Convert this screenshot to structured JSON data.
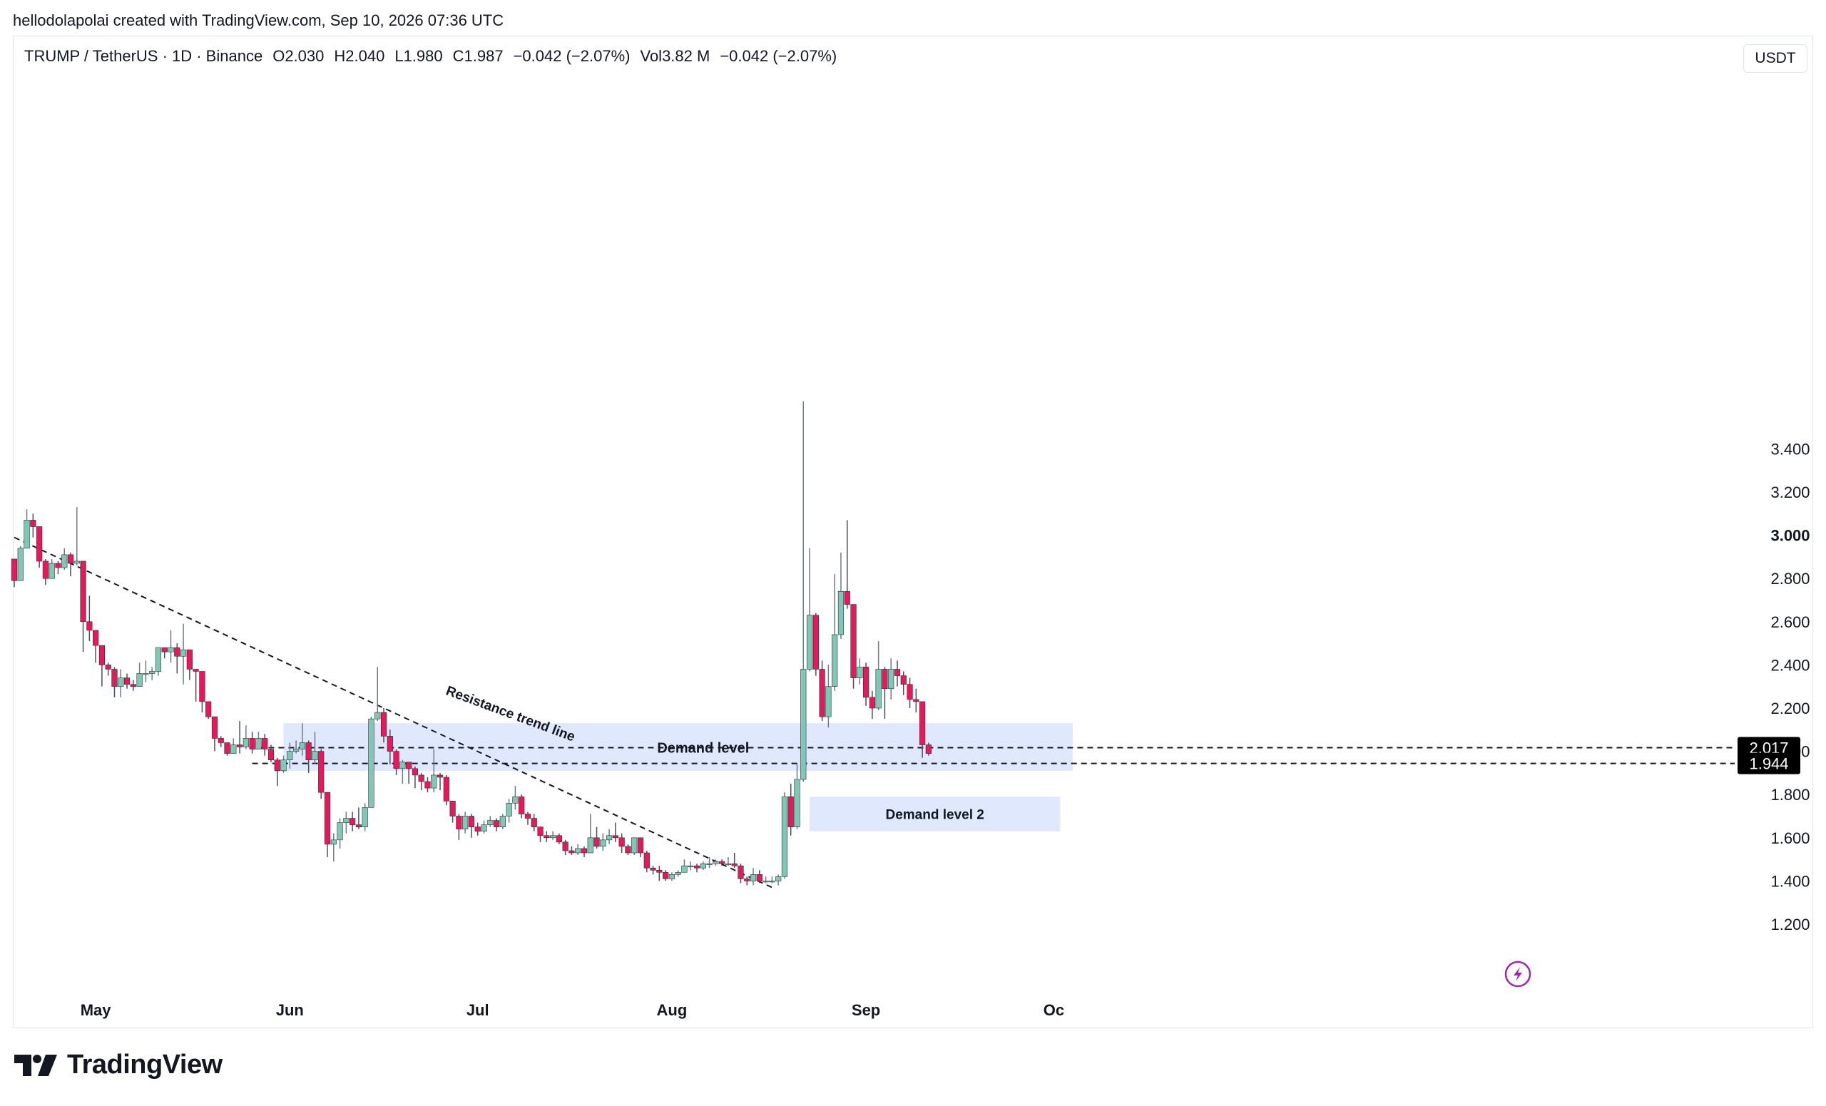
{
  "attribution": "hellodolapolai created with TradingView.com, Sep 10, 2026 07:36 UTC",
  "legend": {
    "symbol": "TRUMP / TetherUS · 1D · Binance",
    "open": "O2.030",
    "high": "H2.040",
    "low": "L1.980",
    "close": "C1.987",
    "change": "−0.042 (−2.07%)",
    "volume": "Vol3.82 M",
    "volume_change": "−0.042 (−2.07%)"
  },
  "currency": "USDT",
  "brand": "TradingView",
  "colors": {
    "up": "#80c8b5",
    "down": "#e8195a",
    "zone": "#e0e8fd",
    "text": "#131722"
  },
  "chart_data": {
    "type": "candlestick",
    "y_ticks": [
      "1.200",
      "1.400",
      "1.600",
      "1.800",
      "2.000",
      "2.200",
      "2.400",
      "2.600",
      "2.800",
      "3.000",
      "3.200",
      "3.400"
    ],
    "y_tick_bold": "3.000",
    "ylim": [
      1.0,
      3.65
    ],
    "x_labels": [
      {
        "label": "May",
        "index": 13
      },
      {
        "label": "Jun",
        "index": 44
      },
      {
        "label": "Jul",
        "index": 74
      },
      {
        "label": "Aug",
        "index": 105
      },
      {
        "label": "Sep",
        "index": 136
      },
      {
        "label": "Oc",
        "index": 166
      }
    ],
    "annotations": {
      "resistance_label": "Resistance trend line",
      "demand_label": "Demand level",
      "demand2_label": "Demand level 2"
    },
    "resistance_line": [
      [
        0,
        2.99
      ],
      [
        121,
        1.37
      ]
    ],
    "demand_zone": {
      "start": 43,
      "end": 169,
      "top": 2.13,
      "bottom": 1.91
    },
    "demand_zone_2": {
      "start": 127,
      "end": 167,
      "top": 1.79,
      "bottom": 1.63
    },
    "price_lines": [
      {
        "value": 2.017,
        "label": "2.017",
        "start": 39
      },
      {
        "value": 1.944,
        "label": "1.944",
        "start": 38
      }
    ],
    "candles": [
      [
        2.89,
        2.79,
        2.89,
        2.76
      ],
      [
        2.79,
        2.94,
        2.95,
        2.79
      ],
      [
        2.94,
        3.07,
        3.12,
        2.94
      ],
      [
        3.07,
        3.04,
        3.1,
        2.99
      ],
      [
        3.04,
        2.88,
        3.04,
        2.85
      ],
      [
        2.88,
        2.8,
        2.89,
        2.77
      ],
      [
        2.8,
        2.87,
        2.89,
        2.8
      ],
      [
        2.87,
        2.85,
        2.88,
        2.82
      ],
      [
        2.85,
        2.91,
        2.94,
        2.84
      ],
      [
        2.91,
        2.87,
        2.92,
        2.81
      ],
      [
        2.87,
        2.88,
        3.13,
        2.86
      ],
      [
        2.88,
        2.6,
        2.88,
        2.46
      ],
      [
        2.6,
        2.56,
        2.72,
        2.51
      ],
      [
        2.56,
        2.49,
        2.56,
        2.41
      ],
      [
        2.49,
        2.4,
        2.49,
        2.3
      ],
      [
        2.4,
        2.38,
        2.41,
        2.35
      ],
      [
        2.38,
        2.3,
        2.39,
        2.25
      ],
      [
        2.3,
        2.34,
        2.38,
        2.25
      ],
      [
        2.34,
        2.31,
        2.36,
        2.29
      ],
      [
        2.31,
        2.3,
        2.33,
        2.28
      ],
      [
        2.3,
        2.36,
        2.41,
        2.3
      ],
      [
        2.36,
        2.36,
        2.42,
        2.32
      ],
      [
        2.36,
        2.37,
        2.39,
        2.33
      ],
      [
        2.37,
        2.48,
        2.48,
        2.35
      ],
      [
        2.48,
        2.46,
        2.48,
        2.43
      ],
      [
        2.46,
        2.48,
        2.56,
        2.41
      ],
      [
        2.48,
        2.44,
        2.5,
        2.36
      ],
      [
        2.44,
        2.47,
        2.59,
        2.31
      ],
      [
        2.47,
        2.38,
        2.47,
        2.33
      ],
      [
        2.38,
        2.37,
        2.38,
        2.23
      ],
      [
        2.37,
        2.23,
        2.37,
        2.18
      ],
      [
        2.23,
        2.16,
        2.23,
        2.15
      ],
      [
        2.16,
        2.06,
        2.16,
        2.0
      ],
      [
        2.06,
        2.04,
        2.07,
        2.02
      ],
      [
        2.04,
        1.99,
        2.04,
        1.98
      ],
      [
        1.99,
        2.03,
        2.06,
        1.99
      ],
      [
        2.03,
        2.02,
        2.14,
        1.99
      ],
      [
        2.02,
        2.06,
        2.12,
        2.01
      ],
      [
        2.06,
        2.01,
        2.09,
        1.99
      ],
      [
        2.01,
        2.06,
        2.09,
        2.01
      ],
      [
        2.06,
        2.01,
        2.08,
        1.98
      ],
      [
        2.01,
        1.96,
        2.03,
        1.95
      ],
      [
        1.96,
        1.91,
        1.97,
        1.84
      ],
      [
        1.91,
        1.96,
        1.98,
        1.9
      ],
      [
        1.96,
        2.0,
        2.04,
        1.92
      ],
      [
        2.0,
        2.01,
        2.05,
        1.99
      ],
      [
        2.01,
        2.04,
        2.13,
        1.98
      ],
      [
        2.04,
        1.96,
        2.05,
        1.9
      ],
      [
        1.96,
        2.0,
        2.09,
        1.94
      ],
      [
        2.0,
        1.81,
        2.01,
        1.78
      ],
      [
        1.81,
        1.57,
        1.81,
        1.51
      ],
      [
        1.57,
        1.59,
        1.62,
        1.49
      ],
      [
        1.59,
        1.67,
        1.69,
        1.55
      ],
      [
        1.67,
        1.69,
        1.72,
        1.62
      ],
      [
        1.69,
        1.66,
        1.72,
        1.63
      ],
      [
        1.66,
        1.65,
        1.74,
        1.64
      ],
      [
        1.65,
        1.74,
        1.76,
        1.63
      ],
      [
        1.74,
        2.15,
        2.16,
        1.74
      ],
      [
        2.15,
        2.18,
        2.39,
        2.14
      ],
      [
        2.18,
        2.07,
        2.2,
        2.04
      ],
      [
        2.07,
        2.0,
        2.1,
        1.94
      ],
      [
        2.0,
        1.92,
        2.01,
        1.89
      ],
      [
        1.92,
        1.95,
        1.96,
        1.85
      ],
      [
        1.95,
        1.92,
        1.95,
        1.85
      ],
      [
        1.92,
        1.89,
        1.93,
        1.83
      ],
      [
        1.89,
        1.86,
        1.9,
        1.82
      ],
      [
        1.86,
        1.83,
        1.88,
        1.81
      ],
      [
        1.83,
        1.89,
        2.01,
        1.81
      ],
      [
        1.89,
        1.88,
        1.9,
        1.82
      ],
      [
        1.88,
        1.77,
        1.89,
        1.75
      ],
      [
        1.77,
        1.7,
        1.77,
        1.67
      ],
      [
        1.7,
        1.64,
        1.71,
        1.59
      ],
      [
        1.64,
        1.7,
        1.72,
        1.62
      ],
      [
        1.7,
        1.65,
        1.71,
        1.6
      ],
      [
        1.65,
        1.63,
        1.67,
        1.61
      ],
      [
        1.63,
        1.66,
        1.68,
        1.62
      ],
      [
        1.66,
        1.68,
        1.7,
        1.65
      ],
      [
        1.68,
        1.65,
        1.69,
        1.63
      ],
      [
        1.65,
        1.7,
        1.71,
        1.64
      ],
      [
        1.7,
        1.76,
        1.78,
        1.67
      ],
      [
        1.76,
        1.79,
        1.84,
        1.73
      ],
      [
        1.79,
        1.71,
        1.8,
        1.69
      ],
      [
        1.71,
        1.69,
        1.72,
        1.66
      ],
      [
        1.69,
        1.65,
        1.71,
        1.63
      ],
      [
        1.65,
        1.61,
        1.65,
        1.58
      ],
      [
        1.61,
        1.6,
        1.63,
        1.58
      ],
      [
        1.6,
        1.61,
        1.63,
        1.59
      ],
      [
        1.61,
        1.58,
        1.62,
        1.57
      ],
      [
        1.58,
        1.54,
        1.59,
        1.52
      ],
      [
        1.54,
        1.53,
        1.56,
        1.52
      ],
      [
        1.53,
        1.55,
        1.57,
        1.52
      ],
      [
        1.55,
        1.53,
        1.56,
        1.51
      ],
      [
        1.53,
        1.6,
        1.71,
        1.53
      ],
      [
        1.6,
        1.56,
        1.65,
        1.55
      ],
      [
        1.56,
        1.59,
        1.62,
        1.54
      ],
      [
        1.59,
        1.61,
        1.64,
        1.57
      ],
      [
        1.61,
        1.6,
        1.67,
        1.58
      ],
      [
        1.6,
        1.56,
        1.62,
        1.53
      ],
      [
        1.56,
        1.53,
        1.57,
        1.52
      ],
      [
        1.53,
        1.6,
        1.6,
        1.52
      ],
      [
        1.6,
        1.53,
        1.6,
        1.51
      ],
      [
        1.53,
        1.46,
        1.54,
        1.44
      ],
      [
        1.46,
        1.45,
        1.47,
        1.43
      ],
      [
        1.45,
        1.44,
        1.47,
        1.4
      ],
      [
        1.44,
        1.41,
        1.45,
        1.4
      ],
      [
        1.41,
        1.43,
        1.44,
        1.4
      ],
      [
        1.43,
        1.44,
        1.45,
        1.42
      ],
      [
        1.44,
        1.47,
        1.5,
        1.44
      ],
      [
        1.47,
        1.47,
        1.49,
        1.45
      ],
      [
        1.47,
        1.46,
        1.48,
        1.44
      ],
      [
        1.46,
        1.48,
        1.49,
        1.45
      ],
      [
        1.48,
        1.48,
        1.51,
        1.46
      ],
      [
        1.48,
        1.49,
        1.5,
        1.47
      ],
      [
        1.49,
        1.48,
        1.5,
        1.47
      ],
      [
        1.48,
        1.48,
        1.51,
        1.47
      ],
      [
        1.48,
        1.47,
        1.53,
        1.46
      ],
      [
        1.47,
        1.41,
        1.48,
        1.39
      ],
      [
        1.41,
        1.4,
        1.42,
        1.38
      ],
      [
        1.4,
        1.43,
        1.46,
        1.38
      ],
      [
        1.43,
        1.4,
        1.45,
        1.39
      ],
      [
        1.4,
        1.4,
        1.42,
        1.39
      ],
      [
        1.4,
        1.4,
        1.42,
        1.39
      ],
      [
        1.4,
        1.42,
        1.43,
        1.38
      ],
      [
        1.42,
        1.79,
        1.81,
        1.41
      ],
      [
        1.79,
        1.65,
        1.85,
        1.61
      ],
      [
        1.65,
        1.87,
        1.94,
        1.64
      ],
      [
        1.87,
        2.38,
        3.62,
        1.86
      ],
      [
        2.38,
        2.63,
        2.94,
        2.37
      ],
      [
        2.63,
        2.38,
        2.64,
        2.35
      ],
      [
        2.38,
        2.16,
        2.42,
        2.14
      ],
      [
        2.16,
        2.3,
        2.4,
        2.11
      ],
      [
        2.3,
        2.54,
        2.82,
        2.28
      ],
      [
        2.54,
        2.74,
        2.92,
        2.52
      ],
      [
        2.74,
        2.68,
        3.07,
        2.66
      ],
      [
        2.68,
        2.34,
        2.68,
        2.29
      ],
      [
        2.34,
        2.39,
        2.43,
        2.31
      ],
      [
        2.39,
        2.25,
        2.41,
        2.21
      ],
      [
        2.25,
        2.2,
        2.28,
        2.15
      ],
      [
        2.2,
        2.38,
        2.51,
        2.19
      ],
      [
        2.38,
        2.29,
        2.39,
        2.15
      ],
      [
        2.29,
        2.38,
        2.43,
        2.24
      ],
      [
        2.38,
        2.35,
        2.42,
        2.3
      ],
      [
        2.35,
        2.31,
        2.37,
        2.26
      ],
      [
        2.31,
        2.24,
        2.34,
        2.2
      ],
      [
        2.24,
        2.23,
        2.29,
        2.18
      ],
      [
        2.23,
        2.03,
        2.23,
        1.97
      ],
      [
        2.03,
        1.99,
        2.04,
        1.98
      ]
    ]
  }
}
